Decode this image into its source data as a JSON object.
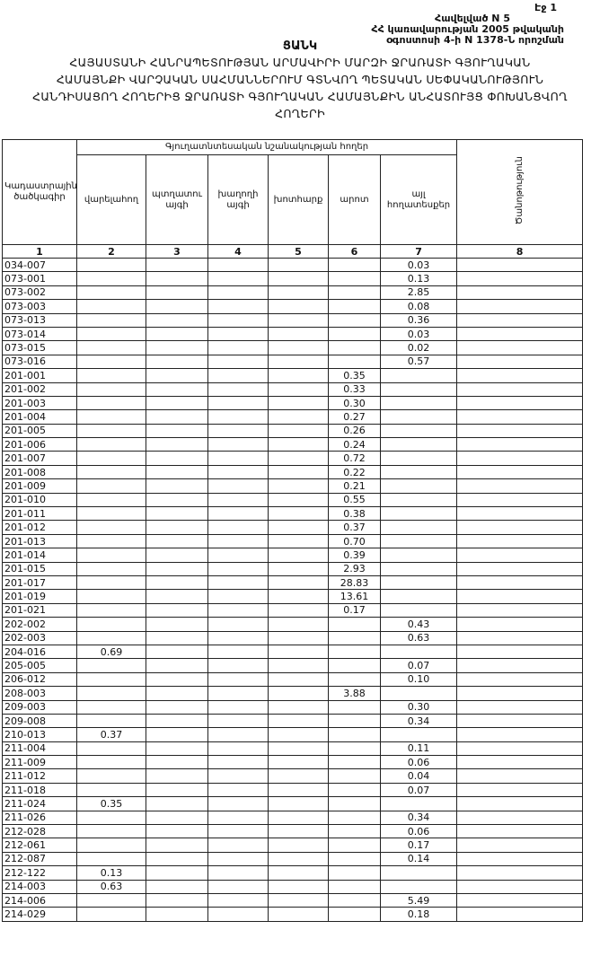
{
  "header": {
    "page": "Էջ 1",
    "annex": "Հավելված N 5",
    "decree_line1": "ՀՀ կառավարության 2005 թվականի",
    "decree_line2": "օգոստոսի 4-ի N 1378-Ն որոշման",
    "title": "ՑԱՆԿ",
    "subtitle_lines": [
      "ՀԱՅԱՍՏԱՆԻ ՀԱՆՐԱՊԵՏՈՒԹՅԱՆ ԱՐՄԱՎԻՐԻ ՄԱՐԶԻ ՋՐԱՌԱՏԻ ԳՅՈՒՂԱԿԱՆ",
      "ՀԱՄԱՅՆՔԻ ՎԱՐՉԱԿԱՆ ՍԱՀՄԱՆՆԵՐՈՒՄ ԳՏՆՎՈՂ ՊԵՏԱԿԱՆ ՍԵՓԱԿԱՆՈՒԹՅՈՒՆ",
      "ՀԱՆԴԻՍԱՑՈՂ ՀՈՂԵՐԻՑ ՋՐԱՌԱՏԻ ԳՅՈՒՂԱԿԱՆ ՀԱՄԱՅՆՔԻՆ ԱՆՀԱՏՈՒՅՑ ՓՈԽԱՆՑՎՈՂ",
      "ՀՈՂԵՐԻ"
    ]
  },
  "table": {
    "headers": {
      "code": "Կադաստրային ծածկագիր",
      "group": "Գյուղատնտեսական նշանակության հողեր",
      "arable": "վարելահող",
      "orchard": "պտղատու այգի",
      "vineyard": "խաղողի այգի",
      "hayfield": "խոտհարք",
      "pasture": "արոտ",
      "other": "այլ հողատեսքեր",
      "note": "Ծանոթություն"
    },
    "column_numbers": [
      "1",
      "2",
      "3",
      "4",
      "5",
      "6",
      "7",
      "8"
    ],
    "rows": [
      {
        "code": "034-007",
        "other": "0.03"
      },
      {
        "code": "073-001",
        "other": "0.13"
      },
      {
        "code": "073-002",
        "other": "2.85"
      },
      {
        "code": "073-003",
        "other": "0.08"
      },
      {
        "code": "073-013",
        "other": "0.36"
      },
      {
        "code": "073-014",
        "other": "0.03"
      },
      {
        "code": "073-015",
        "other": "0.02"
      },
      {
        "code": "073-016",
        "other": "0.57"
      },
      {
        "code": "201-001",
        "pasture": "0.35"
      },
      {
        "code": "201-002",
        "pasture": "0.33"
      },
      {
        "code": "201-003",
        "pasture": "0.30"
      },
      {
        "code": "201-004",
        "pasture": "0.27"
      },
      {
        "code": "201-005",
        "pasture": "0.26"
      },
      {
        "code": "201-006",
        "pasture": "0.24"
      },
      {
        "code": "201-007",
        "pasture": "0.72"
      },
      {
        "code": "201-008",
        "pasture": "0.22"
      },
      {
        "code": "201-009",
        "pasture": "0.21"
      },
      {
        "code": "201-010",
        "pasture": "0.55"
      },
      {
        "code": "201-011",
        "pasture": "0.38"
      },
      {
        "code": "201-012",
        "pasture": "0.37"
      },
      {
        "code": "201-013",
        "pasture": "0.70"
      },
      {
        "code": "201-014",
        "pasture": "0.39"
      },
      {
        "code": "201-015",
        "pasture": "2.93"
      },
      {
        "code": "201-017",
        "pasture": "28.83"
      },
      {
        "code": "201-019",
        "pasture": "13.61"
      },
      {
        "code": "201-021",
        "pasture": "0.17"
      },
      {
        "code": "202-002",
        "other": "0.43"
      },
      {
        "code": "202-003",
        "other": "0.63"
      },
      {
        "code": "204-016",
        "arable": "0.69"
      },
      {
        "code": "205-005",
        "other": "0.07"
      },
      {
        "code": "206-012",
        "other": "0.10"
      },
      {
        "code": "208-003",
        "pasture": "3.88"
      },
      {
        "code": "209-003",
        "other": "0.30"
      },
      {
        "code": "209-008",
        "other": "0.34"
      },
      {
        "code": "210-013",
        "arable": "0.37"
      },
      {
        "code": "211-004",
        "other": "0.11"
      },
      {
        "code": "211-009",
        "other": "0.06"
      },
      {
        "code": "211-012",
        "other": "0.04"
      },
      {
        "code": "211-018",
        "other": "0.07"
      },
      {
        "code": "211-024",
        "arable": "0.35"
      },
      {
        "code": "211-026",
        "other": "0.34"
      },
      {
        "code": "212-028",
        "other": "0.06"
      },
      {
        "code": "212-061",
        "other": "0.17"
      },
      {
        "code": "212-087",
        "other": "0.14"
      },
      {
        "code": "212-122",
        "arable": "0.13"
      },
      {
        "code": "214-003",
        "arable": "0.63"
      },
      {
        "code": "214-006",
        "other": "5.49"
      },
      {
        "code": "214-029",
        "other": "0.18"
      }
    ]
  }
}
